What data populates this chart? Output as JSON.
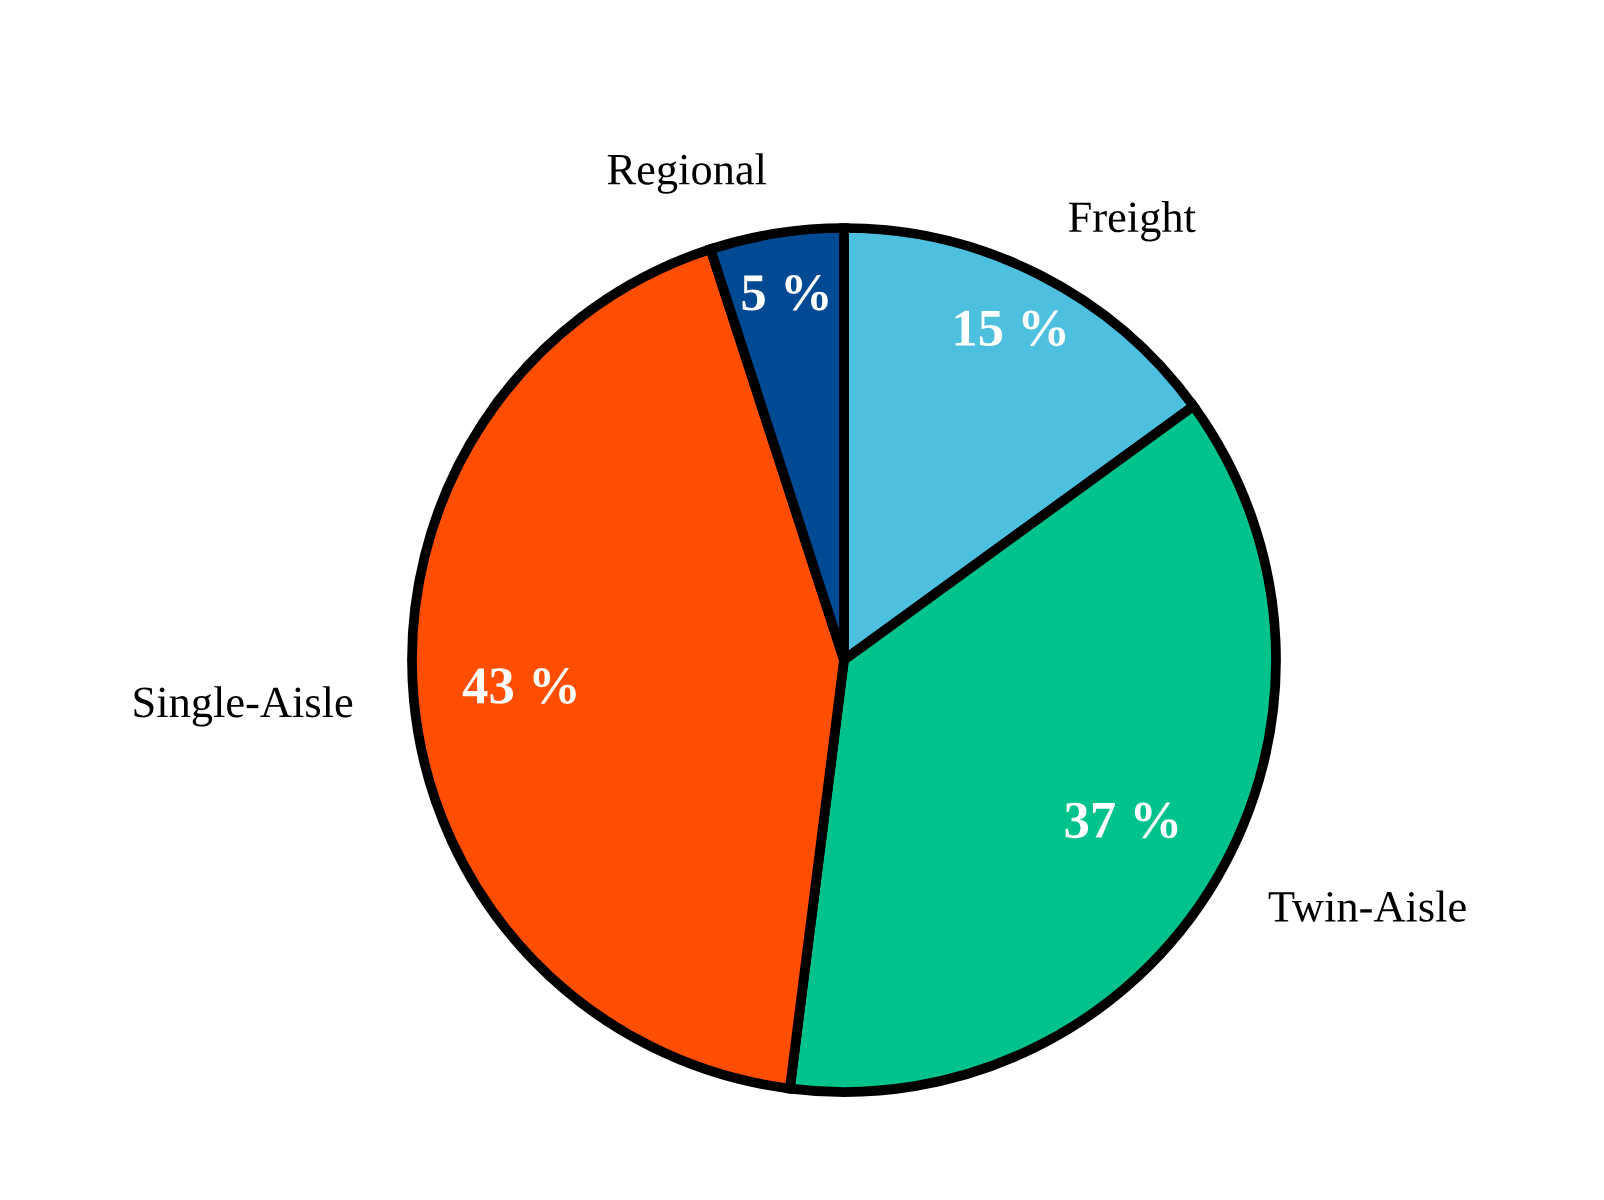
{
  "chart_data": {
    "type": "pie",
    "categories": [
      "Freight",
      "Twin-Aisle",
      "Single-Aisle",
      "Regional"
    ],
    "values": [
      15,
      37,
      43,
      5
    ],
    "colors": [
      "#4dc0e0",
      "#00c28c",
      "#ff4e00",
      "#004a94"
    ],
    "value_labels": [
      "15 %",
      "37 %",
      "43 %",
      "5 %"
    ]
  }
}
